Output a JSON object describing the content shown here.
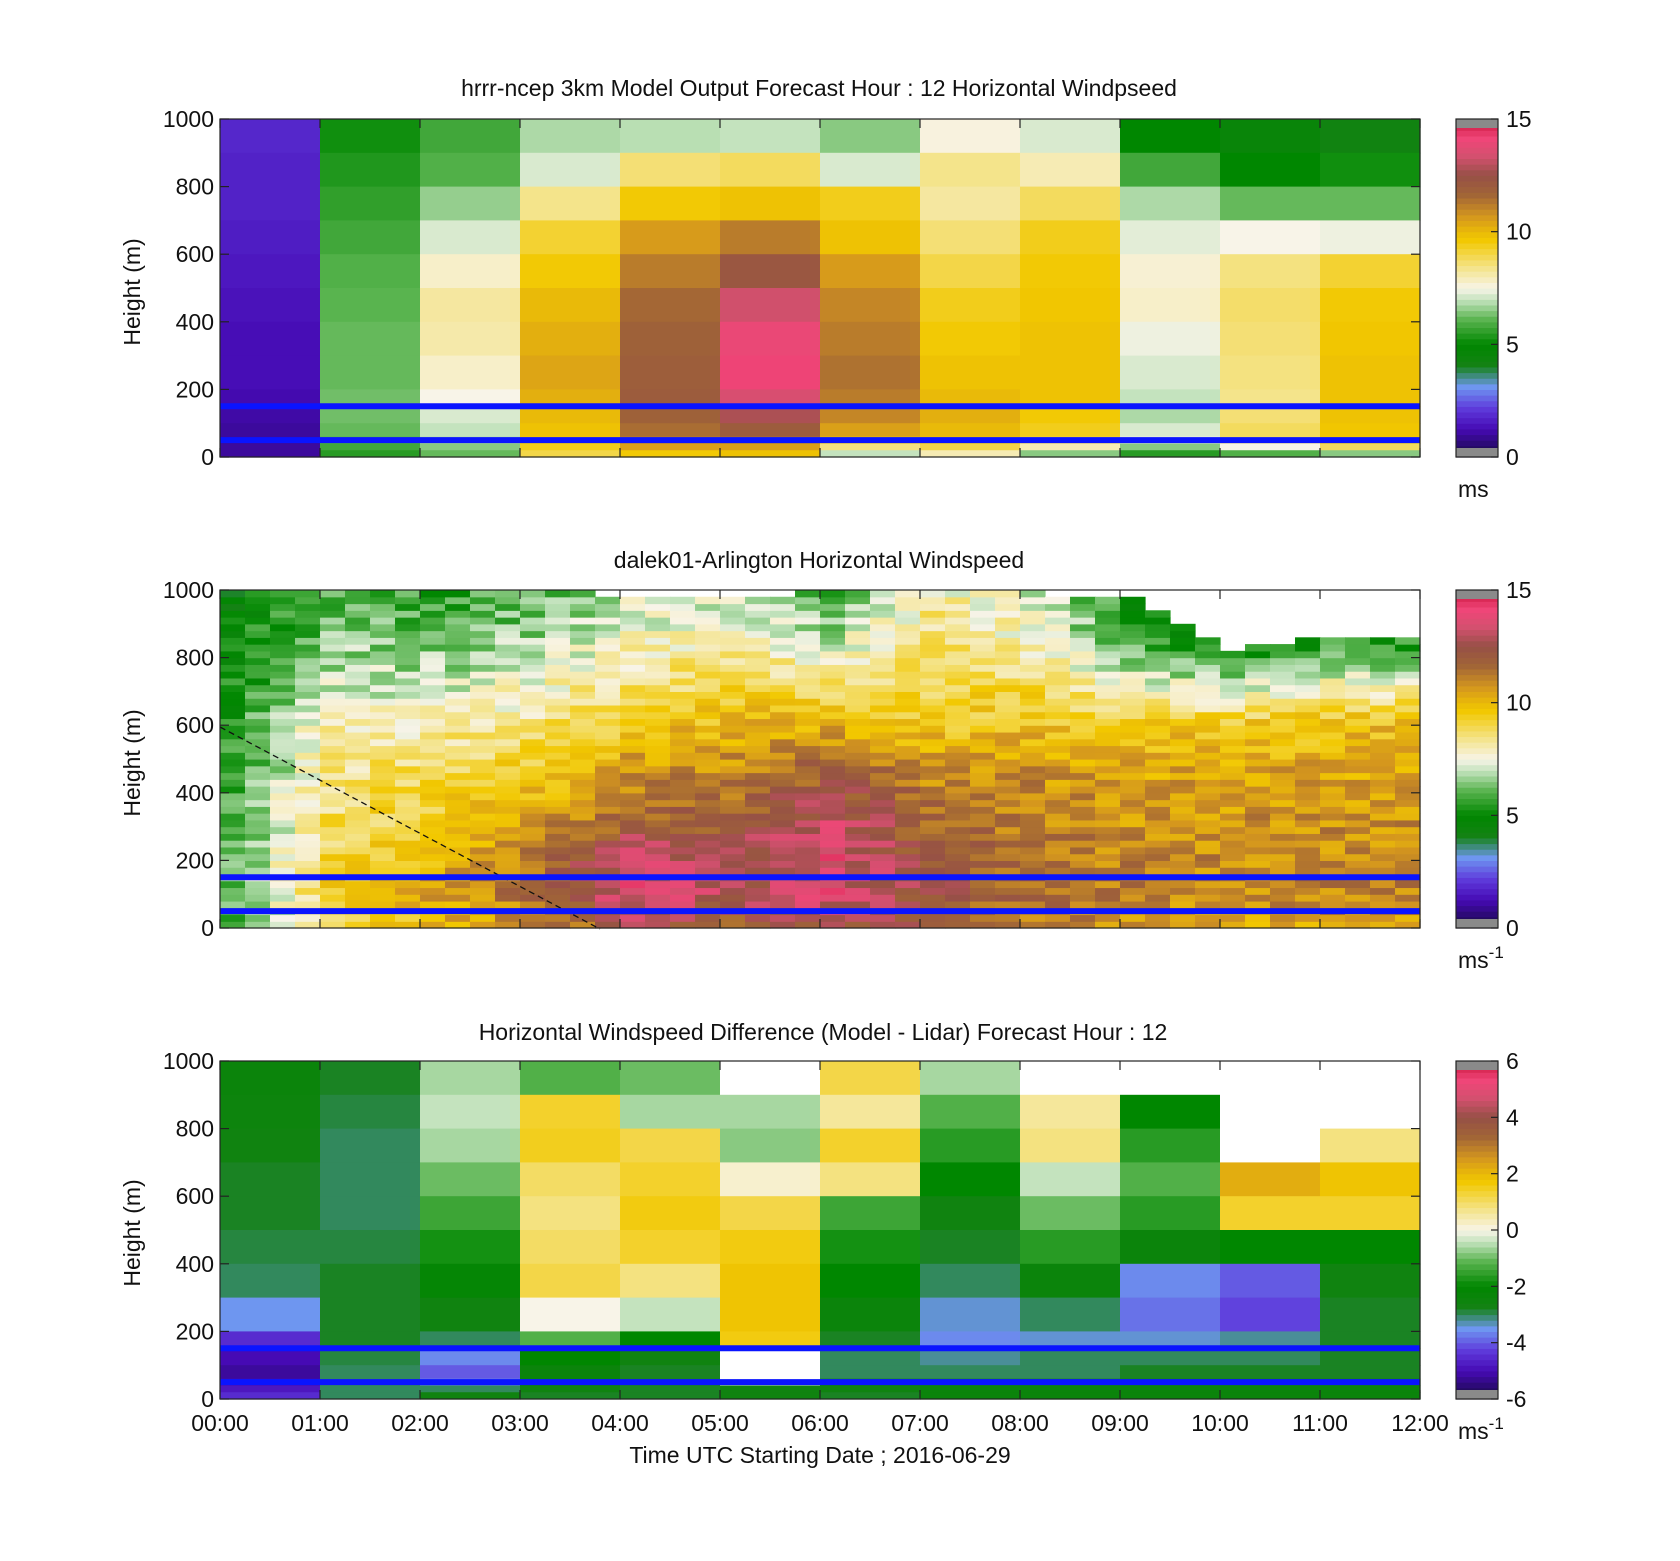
{
  "figure": {
    "xlabel": "Time UTC  Starting Date ; 2016-06-29",
    "x_ticks": [
      "00:00",
      "01:00",
      "02:00",
      "03:00",
      "04:00",
      "05:00",
      "06:00",
      "07:00",
      "08:00",
      "09:00",
      "10:00",
      "11:00",
      "12:00"
    ],
    "reference_heights_m": [
      50,
      150
    ],
    "reference_line_color": "#0a14ff"
  },
  "chart_data": [
    {
      "type": "heatmap",
      "title": "hrrr-ncep 3km Model Output   Forecast Hour : 12 Horizontal Windpseed",
      "xlabel": "",
      "ylabel": "Height (m)",
      "xlim": [
        0,
        12
      ],
      "ylim": [
        0,
        1000
      ],
      "y_ticks": [
        0,
        200,
        400,
        600,
        800,
        1000
      ],
      "colorbar": {
        "min": 0,
        "max": 15,
        "ticks": [
          0,
          5,
          10,
          15
        ],
        "unit": "ms",
        "unit_sup": ""
      },
      "time_step_hours": 1,
      "height_levels_m": [
        1000,
        900,
        800,
        700,
        600,
        500,
        400,
        300,
        200,
        150,
        100,
        60,
        40,
        20
      ],
      "columns": [
        [
          1.8,
          1.7,
          1.7,
          1.6,
          1.5,
          1.4,
          1.3,
          1.3,
          1.2,
          1.1,
          1.0,
          1.0,
          1.0,
          1.0
        ],
        [
          5.2,
          5.4,
          5.6,
          5.8,
          6.0,
          6.1,
          6.2,
          6.2,
          6.3,
          6.3,
          6.2,
          6.0,
          5.8,
          5.5
        ],
        [
          5.8,
          6.0,
          6.6,
          7.2,
          7.8,
          8.2,
          8.1,
          7.8,
          7.5,
          7.2,
          7.0,
          6.8,
          6.5,
          6.2
        ],
        [
          6.8,
          7.2,
          8.4,
          9.2,
          9.6,
          10.0,
          10.2,
          10.4,
          10.2,
          10.0,
          9.8,
          9.6,
          9.4,
          9.0
        ],
        [
          6.9,
          8.6,
          9.6,
          10.6,
          11.2,
          11.6,
          11.8,
          11.9,
          12.0,
          11.8,
          11.5,
          11.0,
          10.5,
          9.6
        ],
        [
          7.0,
          8.8,
          9.8,
          11.2,
          12.2,
          13.3,
          14.0,
          14.2,
          13.5,
          12.8,
          12.0,
          11.2,
          10.5,
          9.8
        ],
        [
          6.5,
          7.2,
          9.4,
          9.8,
          10.6,
          11.0,
          11.2,
          11.4,
          11.2,
          11.0,
          10.5,
          9.6,
          8.5,
          7.0
        ],
        [
          7.6,
          8.4,
          8.2,
          8.6,
          9.0,
          9.4,
          9.6,
          9.8,
          10.0,
          10.2,
          10.0,
          9.6,
          9.0,
          8.0
        ],
        [
          7.2,
          8.0,
          8.8,
          9.4,
          9.6,
          9.7,
          9.8,
          9.8,
          9.8,
          9.6,
          9.4,
          9.0,
          8.0,
          6.5
        ],
        [
          5.0,
          5.8,
          6.8,
          7.3,
          7.7,
          7.8,
          7.4,
          7.2,
          7.0,
          6.8,
          7.2,
          7.5,
          6.5,
          5.5
        ],
        [
          4.6,
          5.0,
          6.2,
          7.5,
          8.5,
          8.7,
          8.6,
          8.5,
          8.4,
          8.6,
          8.8,
          8.7,
          7.5,
          6.0
        ],
        [
          4.2,
          5.2,
          6.2,
          7.4,
          9.2,
          9.6,
          9.7,
          9.8,
          9.8,
          9.8,
          9.7,
          9.6,
          8.8,
          6.5
        ]
      ]
    },
    {
      "type": "heatmap",
      "title": "dalek01-Arlington  Horizontal Windspeed",
      "xlabel": "",
      "ylabel": "Height (m)",
      "xlim": [
        0,
        12
      ],
      "ylim": [
        0,
        1000
      ],
      "y_ticks": [
        0,
        200,
        400,
        600,
        800,
        1000
      ],
      "colorbar": {
        "min": 0,
        "max": 15,
        "ticks": [
          0,
          5,
          10,
          15
        ],
        "unit": "ms",
        "unit_sup": "-1"
      },
      "time_step_hours": 0.25,
      "profile_knots_height_m": [
        0,
        100,
        200,
        300,
        400,
        500,
        600,
        700,
        800,
        900,
        1000
      ],
      "profile_knots_hourly": [
        [
          5.5,
          6.0,
          6.2,
          6.0,
          5.8,
          5.6,
          5.4,
          5.2,
          5.0,
          4.8,
          4.6
        ],
        [
          8.5,
          9.3,
          9.2,
          8.8,
          8.5,
          8.2,
          8.0,
          7.2,
          6.8,
          6.2,
          5.8
        ],
        [
          10.0,
          10.4,
          10.0,
          9.6,
          9.2,
          8.8,
          8.0,
          7.2,
          6.6,
          6.0,
          5.6
        ],
        [
          10.8,
          11.5,
          11.2,
          10.5,
          9.8,
          9.2,
          8.5,
          7.8,
          7.0,
          6.4,
          6.0
        ],
        [
          12.5,
          13.8,
          13.6,
          12.2,
          11.2,
          10.4,
          9.6,
          8.8,
          8.0,
          7.5,
          7.0
        ],
        [
          11.5,
          12.8,
          12.8,
          12.0,
          11.4,
          10.8,
          10.0,
          9.2,
          8.4,
          7.6,
          7.0
        ],
        [
          12.8,
          13.6,
          13.8,
          13.4,
          12.6,
          11.6,
          10.2,
          8.8,
          7.6,
          6.6,
          6.0
        ],
        [
          11.6,
          12.2,
          12.0,
          11.6,
          11.2,
          10.6,
          9.6,
          9.2,
          8.8,
          8.4,
          8.0
        ],
        [
          11.0,
          11.6,
          11.4,
          11.2,
          11.0,
          10.6,
          9.8,
          9.0,
          8.2,
          7.6,
          7.2
        ],
        [
          10.4,
          11.2,
          11.0,
          10.8,
          10.6,
          10.2,
          9.4,
          8.0,
          6.5,
          5.5,
          5.0
        ],
        [
          10.2,
          10.8,
          10.8,
          10.8,
          10.6,
          10.2,
          9.6,
          7.5,
          5.5,
          4.8,
          4.5
        ],
        [
          10.4,
          11.0,
          11.0,
          10.8,
          10.6,
          10.2,
          9.8,
          8.2,
          6.0,
          5.0,
          4.5
        ]
      ],
      "missing_above_m_hourly": [
        1000,
        1000,
        1000,
        1000,
        980,
        970,
        1000,
        1000,
        990,
        970,
        820,
        860
      ]
    },
    {
      "type": "heatmap",
      "title": "Horizontal Windspeed Difference (Model - Lidar) Forecast Hour : 12",
      "xlabel": "Time UTC  Starting Date ; 2016-06-29",
      "ylabel": "Height (m)",
      "xlim": [
        0,
        12
      ],
      "ylim": [
        0,
        1000
      ],
      "y_ticks": [
        0,
        200,
        400,
        600,
        800,
        1000
      ],
      "colorbar": {
        "min": -6,
        "max": 6,
        "ticks": [
          -6,
          -4,
          -2,
          0,
          2,
          4,
          6
        ],
        "unit": "ms",
        "unit_sup": "-1"
      },
      "time_step_hours": 1,
      "height_levels_m": [
        1000,
        900,
        800,
        700,
        600,
        500,
        400,
        300,
        200,
        150,
        100,
        60,
        40,
        20
      ],
      "columns": [
        [
          -2.4,
          -2.5,
          -2.6,
          -2.8,
          -2.8,
          -2.9,
          -3.0,
          -3.5,
          -4.5,
          -5.0,
          -5.2,
          -5.0,
          -4.8,
          -4.5
        ],
        [
          -2.8,
          -2.9,
          -3.0,
          -3.0,
          -3.0,
          -2.9,
          -2.8,
          -2.8,
          -2.8,
          -2.9,
          -3.0,
          -3.0,
          -3.0,
          -3.0
        ],
        [
          -0.6,
          -0.4,
          -0.6,
          -1.0,
          -1.4,
          -1.8,
          -2.2,
          -2.6,
          -3.0,
          -3.6,
          -4.0,
          -3.6,
          -3.0,
          -2.6
        ],
        [
          -1.2,
          1.4,
          1.5,
          1.0,
          0.8,
          1.0,
          1.2,
          0.0,
          -1.2,
          -2.0,
          -2.4,
          -2.4,
          -2.6,
          -2.8
        ],
        [
          -1.0,
          -0.6,
          1.2,
          1.4,
          1.6,
          1.4,
          0.8,
          -0.4,
          -2.0,
          -2.6,
          -2.8,
          -2.8,
          -2.8,
          -2.8
        ],
        [
          null,
          -0.6,
          -0.8,
          0.2,
          1.2,
          1.6,
          1.8,
          1.8,
          1.6,
          null,
          null,
          null,
          -2.6,
          -2.6
        ],
        [
          1.2,
          0.6,
          1.4,
          0.8,
          -1.4,
          -1.8,
          -2.0,
          -2.4,
          -2.8,
          -3.0,
          -3.0,
          -2.4,
          -2.6,
          -2.8
        ],
        [
          -0.6,
          -1.2,
          -1.6,
          -2.0,
          -2.6,
          -2.8,
          -3.0,
          -3.4,
          -3.6,
          -3.2,
          -3.0,
          -2.6,
          -2.4,
          -2.4
        ],
        [
          null,
          0.6,
          0.8,
          -0.4,
          -1.0,
          -1.6,
          -2.4,
          -3.0,
          -3.4,
          -3.0,
          -3.0,
          -2.6,
          -2.4,
          -2.4
        ],
        [
          null,
          -2.0,
          -1.6,
          -1.2,
          -1.6,
          -2.4,
          -3.6,
          -3.8,
          -3.4,
          -3.0,
          -2.8,
          -2.6,
          -2.4,
          -2.4
        ],
        [
          null,
          null,
          null,
          2.2,
          1.4,
          -2.0,
          -4.0,
          -4.2,
          -3.2,
          -3.0,
          -2.8,
          -2.6,
          -2.4,
          -2.4
        ],
        [
          null,
          null,
          0.8,
          1.8,
          1.4,
          -2.0,
          -2.6,
          -2.8,
          -2.8,
          -2.8,
          -2.8,
          -2.6,
          -2.4,
          -2.4
        ]
      ]
    }
  ]
}
